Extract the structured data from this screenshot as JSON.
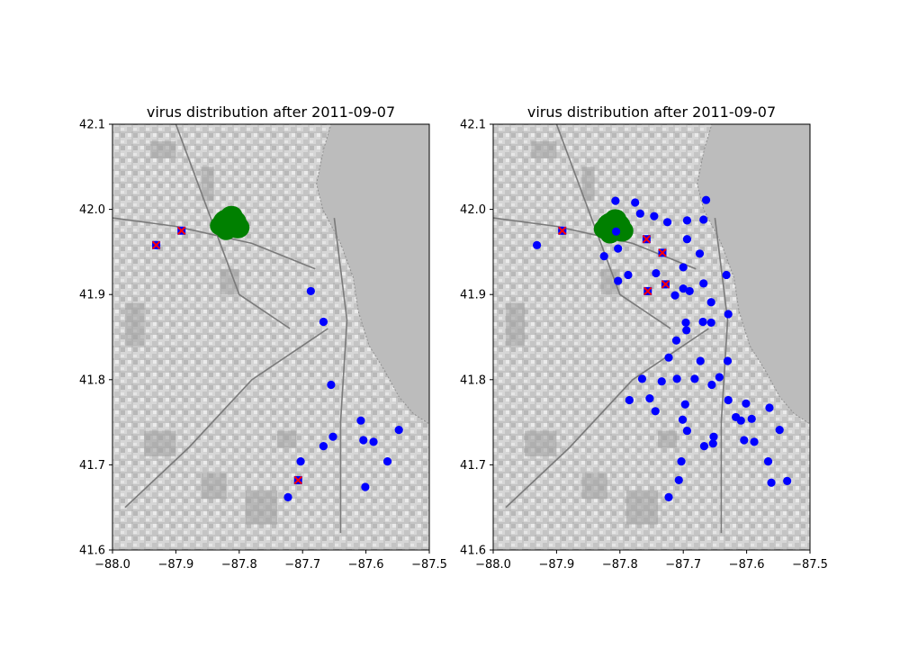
{
  "chart_data": [
    {
      "type": "scatter",
      "title": "virus distribution after 2011-09-07",
      "xlim": [
        -88.0,
        -87.5
      ],
      "ylim": [
        41.6,
        42.1
      ],
      "x_ticks": [
        "−88.0",
        "−87.9",
        "−87.8",
        "−87.7",
        "−87.6",
        "−87.5"
      ],
      "y_ticks": [
        "41.6",
        "41.7",
        "41.8",
        "41.9",
        "42.0",
        "42.1"
      ],
      "background": "grayscale street map",
      "colors": {
        "virus_absent": "#0000ff",
        "virus_present": "#ff0000",
        "spray": "#008000"
      },
      "virus_absent": [
        [
          -87.687,
          41.904
        ],
        [
          -87.667,
          41.868
        ],
        [
          -87.655,
          41.794
        ],
        [
          -87.608,
          41.752
        ],
        [
          -87.652,
          41.733
        ],
        [
          -87.667,
          41.722
        ],
        [
          -87.604,
          41.729
        ],
        [
          -87.588,
          41.727
        ],
        [
          -87.548,
          41.741
        ],
        [
          -87.566,
          41.704
        ],
        [
          -87.703,
          41.704
        ],
        [
          -87.601,
          41.674
        ],
        [
          -87.723,
          41.662
        ],
        [
          -87.931,
          41.958
        ]
      ],
      "virus_present": [
        [
          -87.931,
          41.958
        ],
        [
          -87.891,
          41.975
        ],
        [
          -87.707,
          41.682
        ]
      ],
      "spray_center": [
        -87.815,
        41.984
      ]
    },
    {
      "type": "scatter",
      "title": "virus distribution after 2011-09-07",
      "xlim": [
        -88.0,
        -87.5
      ],
      "ylim": [
        41.6,
        42.1
      ],
      "x_ticks": [
        "−88.0",
        "−87.9",
        "−87.8",
        "−87.7",
        "−87.6",
        "−87.5"
      ],
      "y_ticks": [
        "41.6",
        "41.7",
        "41.8",
        "41.9",
        "42.0",
        "42.1"
      ],
      "background": "grayscale street map",
      "colors": {
        "virus_absent": "#0000ff",
        "virus_present": "#ff0000",
        "spray": "#008000"
      },
      "virus_absent": [
        [
          -87.931,
          41.958
        ],
        [
          -87.891,
          41.975
        ],
        [
          -87.807,
          42.01
        ],
        [
          -87.776,
          42.008
        ],
        [
          -87.768,
          41.995
        ],
        [
          -87.746,
          41.992
        ],
        [
          -87.725,
          41.985
        ],
        [
          -87.694,
          41.987
        ],
        [
          -87.668,
          41.988
        ],
        [
          -87.664,
          42.011
        ],
        [
          -87.806,
          41.974
        ],
        [
          -87.803,
          41.954
        ],
        [
          -87.825,
          41.945
        ],
        [
          -87.694,
          41.965
        ],
        [
          -87.674,
          41.948
        ],
        [
          -87.7,
          41.932
        ],
        [
          -87.743,
          41.925
        ],
        [
          -87.787,
          41.923
        ],
        [
          -87.803,
          41.916
        ],
        [
          -87.632,
          41.923
        ],
        [
          -87.668,
          41.913
        ],
        [
          -87.7,
          41.907
        ],
        [
          -87.69,
          41.904
        ],
        [
          -87.713,
          41.899
        ],
        [
          -87.656,
          41.891
        ],
        [
          -87.629,
          41.877
        ],
        [
          -87.696,
          41.867
        ],
        [
          -87.669,
          41.868
        ],
        [
          -87.656,
          41.867
        ],
        [
          -87.695,
          41.858
        ],
        [
          -87.711,
          41.846
        ],
        [
          -87.723,
          41.826
        ],
        [
          -87.63,
          41.822
        ],
        [
          -87.673,
          41.822
        ],
        [
          -87.643,
          41.803
        ],
        [
          -87.682,
          41.801
        ],
        [
          -87.71,
          41.801
        ],
        [
          -87.765,
          41.801
        ],
        [
          -87.734,
          41.798
        ],
        [
          -87.655,
          41.794
        ],
        [
          -87.753,
          41.778
        ],
        [
          -87.785,
          41.776
        ],
        [
          -87.629,
          41.776
        ],
        [
          -87.601,
          41.772
        ],
        [
          -87.697,
          41.771
        ],
        [
          -87.564,
          41.767
        ],
        [
          -87.744,
          41.763
        ],
        [
          -87.617,
          41.756
        ],
        [
          -87.609,
          41.752
        ],
        [
          -87.592,
          41.754
        ],
        [
          -87.701,
          41.753
        ],
        [
          -87.548,
          41.741
        ],
        [
          -87.694,
          41.74
        ],
        [
          -87.652,
          41.733
        ],
        [
          -87.604,
          41.729
        ],
        [
          -87.588,
          41.727
        ],
        [
          -87.653,
          41.725
        ],
        [
          -87.667,
          41.722
        ],
        [
          -87.566,
          41.704
        ],
        [
          -87.703,
          41.704
        ],
        [
          -87.707,
          41.682
        ],
        [
          -87.536,
          41.681
        ],
        [
          -87.561,
          41.679
        ],
        [
          -87.723,
          41.662
        ]
      ],
      "virus_present": [
        [
          -87.891,
          41.975
        ],
        [
          -87.758,
          41.965
        ],
        [
          -87.733,
          41.949
        ],
        [
          -87.728,
          41.912
        ],
        [
          -87.756,
          41.904
        ]
      ],
      "spray_center": [
        -87.81,
        41.98
      ]
    }
  ]
}
